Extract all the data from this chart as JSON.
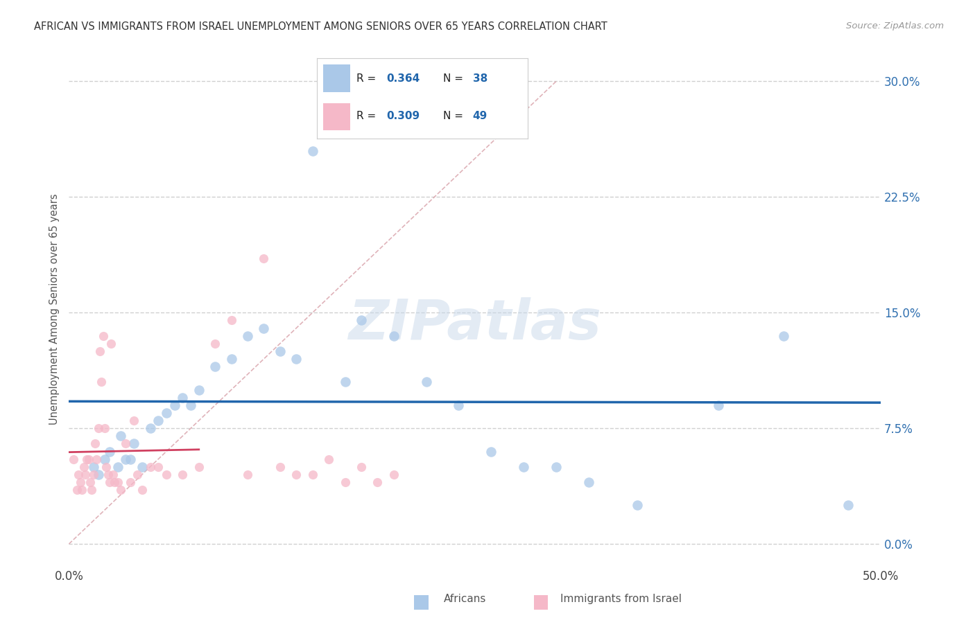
{
  "title": "AFRICAN VS IMMIGRANTS FROM ISRAEL UNEMPLOYMENT AMONG SENIORS OVER 65 YEARS CORRELATION CHART",
  "source": "Source: ZipAtlas.com",
  "ylabel": "Unemployment Among Seniors over 65 years",
  "xlim": [
    0.0,
    50.0
  ],
  "ylim": [
    -1.5,
    32.0
  ],
  "R1": 0.364,
  "N1": 38,
  "R2": 0.309,
  "N2": 49,
  "color_blue": "#aac8e8",
  "color_pink": "#f5b8c8",
  "color_blue_line": "#2166ac",
  "color_pink_line": "#d04060",
  "color_diag": "#d8a0a8",
  "background_color": "#ffffff",
  "grid_color": "#d0d0d0",
  "africans_x": [
    1.5,
    1.8,
    2.2,
    2.5,
    3.0,
    3.2,
    3.5,
    3.8,
    4.0,
    4.5,
    5.0,
    5.5,
    6.0,
    6.5,
    7.0,
    7.5,
    8.0,
    9.0,
    10.0,
    11.0,
    12.0,
    13.0,
    14.0,
    15.0,
    16.0,
    17.0,
    18.0,
    20.0,
    22.0,
    24.0,
    26.0,
    28.0,
    30.0,
    32.0,
    35.0,
    40.0,
    44.0,
    48.0
  ],
  "africans_y": [
    5.0,
    4.5,
    5.5,
    6.0,
    5.0,
    7.0,
    5.5,
    5.5,
    6.5,
    5.0,
    7.5,
    8.0,
    8.5,
    9.0,
    9.5,
    9.0,
    10.0,
    11.5,
    12.0,
    13.5,
    14.0,
    12.5,
    12.0,
    25.5,
    27.0,
    10.5,
    14.5,
    13.5,
    10.5,
    9.0,
    6.0,
    5.0,
    5.0,
    4.0,
    2.5,
    9.0,
    13.5,
    2.5
  ],
  "israel_x": [
    0.3,
    0.5,
    0.6,
    0.7,
    0.8,
    0.9,
    1.0,
    1.1,
    1.2,
    1.3,
    1.4,
    1.5,
    1.6,
    1.7,
    1.8,
    1.9,
    2.0,
    2.1,
    2.2,
    2.3,
    2.4,
    2.5,
    2.6,
    2.7,
    2.8,
    3.0,
    3.2,
    3.5,
    3.8,
    4.0,
    4.2,
    4.5,
    5.0,
    5.5,
    6.0,
    7.0,
    8.0,
    9.0,
    10.0,
    11.0,
    12.0,
    13.0,
    14.0,
    15.0,
    16.0,
    17.0,
    18.0,
    19.0,
    20.0
  ],
  "israel_y": [
    5.5,
    3.5,
    4.5,
    4.0,
    3.5,
    5.0,
    4.5,
    5.5,
    5.5,
    4.0,
    3.5,
    4.5,
    6.5,
    5.5,
    7.5,
    12.5,
    10.5,
    13.5,
    7.5,
    5.0,
    4.5,
    4.0,
    13.0,
    4.5,
    4.0,
    4.0,
    3.5,
    6.5,
    4.0,
    8.0,
    4.5,
    3.5,
    5.0,
    5.0,
    4.5,
    4.5,
    5.0,
    13.0,
    14.5,
    4.5,
    18.5,
    5.0,
    4.5,
    4.5,
    5.5,
    4.0,
    5.0,
    4.0,
    4.5
  ]
}
